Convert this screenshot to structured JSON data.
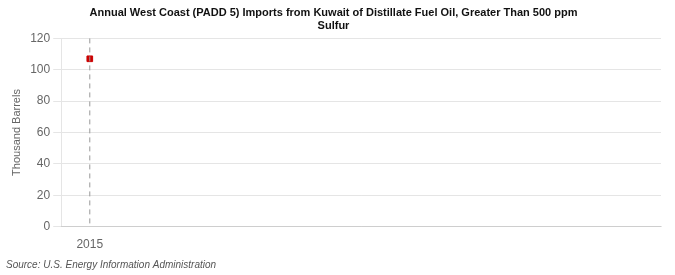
{
  "chart_data": {
    "type": "scatter",
    "title": "Annual West Coast (PADD 5) Imports from Kuwait of Distillate Fuel Oil, Greater Than 500 ppm\nSulfur",
    "ylabel": "Thousand Barrels",
    "source": "Source: U.S. Energy Information Administration",
    "x": [
      2015
    ],
    "values": [
      107
    ],
    "color": "#cc0000",
    "marker": "square",
    "xlim": [
      2014.5,
      2025.0
    ],
    "xticks": [
      2015
    ],
    "ylim": [
      0,
      120
    ],
    "yticks": [
      0,
      20,
      40,
      60,
      80,
      100,
      120
    ],
    "vlines": [
      {
        "x": 2015,
        "line_style": "dashed",
        "color": "#999999"
      }
    ],
    "grid": "y",
    "legend": false
  }
}
